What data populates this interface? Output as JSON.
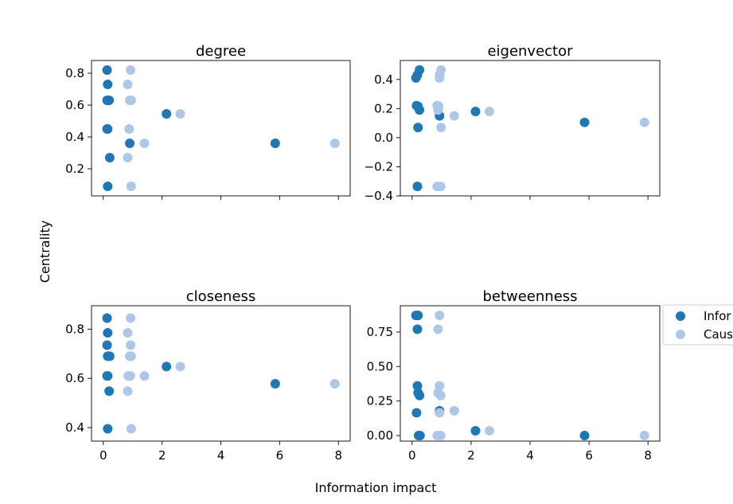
{
  "figure": {
    "xlabel": "Information impact",
    "ylabel": "Centrality"
  },
  "legend": {
    "placement": "right",
    "entries": [
      {
        "label": "Infor",
        "color": "#1f77b4"
      },
      {
        "label": "Caus",
        "color": "#aec7e8"
      }
    ]
  },
  "colors": {
    "series_a": "#1f77b4",
    "series_b": "#aec7e8"
  },
  "chart_data": [
    {
      "type": "scatter",
      "title": "degree",
      "xlim": [
        -0.4,
        8.4
      ],
      "ylim": [
        0.03,
        0.88
      ],
      "xticks": [
        0,
        2,
        4,
        6,
        8
      ],
      "yticks": [
        {
          "v": 0.2,
          "label": "0.2"
        },
        {
          "v": 0.4,
          "label": "0.4"
        },
        {
          "v": 0.6,
          "label": "0.6"
        },
        {
          "v": 0.8,
          "label": "0.8"
        }
      ],
      "show_xtick_labels": false,
      "series": [
        {
          "points": [
            [
              0.13,
              0.82
            ],
            [
              0.15,
              0.73
            ],
            [
              0.13,
              0.63
            ],
            [
              0.2,
              0.63
            ],
            [
              0.13,
              0.45
            ],
            [
              0.15,
              0.45
            ],
            [
              0.9,
              0.36
            ],
            [
              0.22,
              0.27
            ],
            [
              0.15,
              0.09
            ],
            [
              2.15,
              0.545
            ],
            [
              5.85,
              0.36
            ]
          ]
        },
        {
          "points": [
            [
              0.93,
              0.82
            ],
            [
              0.83,
              0.73
            ],
            [
              0.9,
              0.63
            ],
            [
              0.95,
              0.63
            ],
            [
              0.88,
              0.45
            ],
            [
              0.83,
              0.27
            ],
            [
              1.4,
              0.36
            ],
            [
              0.95,
              0.09
            ],
            [
              2.62,
              0.545
            ],
            [
              7.88,
              0.36
            ]
          ]
        }
      ]
    },
    {
      "type": "scatter",
      "title": "eigenvector",
      "xlim": [
        -0.4,
        8.4
      ],
      "ylim": [
        -0.4,
        0.53
      ],
      "xticks": [
        0,
        2,
        4,
        6,
        8
      ],
      "yticks": [
        {
          "v": -0.4,
          "label": "−0.4"
        },
        {
          "v": -0.2,
          "label": "−0.2"
        },
        {
          "v": 0.0,
          "label": "0.0"
        },
        {
          "v": 0.2,
          "label": "0.2"
        },
        {
          "v": 0.4,
          "label": "0.4"
        }
      ],
      "show_xtick_labels": false,
      "series": [
        {
          "points": [
            [
              0.25,
              0.465
            ],
            [
              0.18,
              0.43
            ],
            [
              0.13,
              0.41
            ],
            [
              0.15,
              0.22
            ],
            [
              0.2,
              0.215
            ],
            [
              0.25,
              0.19
            ],
            [
              0.93,
              0.15
            ],
            [
              0.2,
              0.07
            ],
            [
              0.18,
              -0.335
            ],
            [
              2.15,
              0.18
            ],
            [
              5.85,
              0.105
            ]
          ]
        },
        {
          "points": [
            [
              0.98,
              0.465
            ],
            [
              0.93,
              0.43
            ],
            [
              0.93,
              0.41
            ],
            [
              0.85,
              0.22
            ],
            [
              0.9,
              0.215
            ],
            [
              0.88,
              0.19
            ],
            [
              1.43,
              0.15
            ],
            [
              0.98,
              0.07
            ],
            [
              0.85,
              -0.335
            ],
            [
              0.97,
              -0.335
            ],
            [
              2.62,
              0.18
            ],
            [
              7.88,
              0.105
            ]
          ]
        }
      ]
    },
    {
      "type": "scatter",
      "title": "closeness",
      "xlim": [
        -0.4,
        8.4
      ],
      "ylim": [
        0.345,
        0.895
      ],
      "xticks": [
        0,
        2,
        4,
        6,
        8
      ],
      "yticks": [
        {
          "v": 0.4,
          "label": "0.4"
        },
        {
          "v": 0.6,
          "label": "0.6"
        },
        {
          "v": 0.8,
          "label": "0.8"
        }
      ],
      "show_xtick_labels": true,
      "series": [
        {
          "points": [
            [
              0.13,
              0.845
            ],
            [
              0.15,
              0.785
            ],
            [
              0.13,
              0.735
            ],
            [
              0.15,
              0.69
            ],
            [
              0.22,
              0.69
            ],
            [
              0.13,
              0.61
            ],
            [
              0.15,
              0.61
            ],
            [
              0.2,
              0.548
            ],
            [
              0.15,
              0.395
            ],
            [
              2.15,
              0.648
            ],
            [
              5.85,
              0.578
            ]
          ]
        },
        {
          "points": [
            [
              0.93,
              0.845
            ],
            [
              0.83,
              0.785
            ],
            [
              0.93,
              0.735
            ],
            [
              0.9,
              0.69
            ],
            [
              0.95,
              0.69
            ],
            [
              0.85,
              0.61
            ],
            [
              0.92,
              0.61
            ],
            [
              0.83,
              0.548
            ],
            [
              1.4,
              0.61
            ],
            [
              0.95,
              0.395
            ],
            [
              2.62,
              0.648
            ],
            [
              7.88,
              0.578
            ]
          ]
        }
      ]
    },
    {
      "type": "scatter",
      "title": "betweenness",
      "xlim": [
        -0.4,
        8.4
      ],
      "ylim": [
        -0.04,
        0.94
      ],
      "xticks": [
        0,
        2,
        4,
        6,
        8
      ],
      "yticks": [
        {
          "v": 0.0,
          "label": "0.00"
        },
        {
          "v": 0.25,
          "label": "0.25"
        },
        {
          "v": 0.5,
          "label": "0.50"
        },
        {
          "v": 0.75,
          "label": "0.75"
        }
      ],
      "show_xtick_labels": true,
      "series": [
        {
          "points": [
            [
              0.13,
              0.87
            ],
            [
              0.2,
              0.87
            ],
            [
              0.18,
              0.77
            ],
            [
              0.18,
              0.36
            ],
            [
              0.2,
              0.31
            ],
            [
              0.25,
              0.29
            ],
            [
              0.15,
              0.165
            ],
            [
              0.93,
              0.18
            ],
            [
              0.22,
              0.0
            ],
            [
              0.27,
              0.0
            ],
            [
              2.15,
              0.035
            ],
            [
              5.85,
              0.0
            ]
          ]
        },
        {
          "points": [
            [
              0.93,
              0.87
            ],
            [
              0.88,
              0.77
            ],
            [
              0.93,
              0.36
            ],
            [
              0.88,
              0.31
            ],
            [
              0.97,
              0.29
            ],
            [
              0.93,
              0.165
            ],
            [
              1.43,
              0.18
            ],
            [
              0.85,
              0.0
            ],
            [
              0.97,
              0.0
            ],
            [
              2.62,
              0.035
            ],
            [
              7.88,
              0.0
            ]
          ]
        }
      ]
    }
  ]
}
